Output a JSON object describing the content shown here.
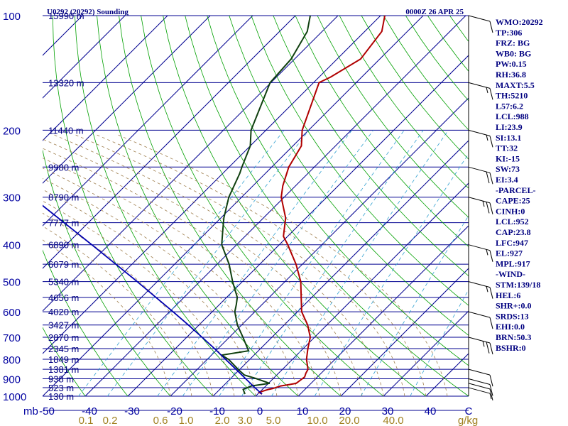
{
  "header": {
    "station": "U0292 (20292) Sounding",
    "time": "0000Z 26 APR 25"
  },
  "chart_data": {
    "type": "line",
    "title": "U0292 (20292) Sounding",
    "subtitle": "0000Z 26 APR 25",
    "y_axis": {
      "label": "mb",
      "scale": "log",
      "range": [
        1000,
        100
      ],
      "ticks": [
        "100",
        "200",
        "300",
        "400",
        "500",
        "600",
        "700",
        "800",
        "900",
        "1000"
      ]
    },
    "x_axis": {
      "label": "C",
      "range": [
        -50,
        50
      ],
      "skew": true,
      "ticks": [
        "-50",
        "-40",
        "-30",
        "-20",
        "-10",
        "0",
        "10",
        "20",
        "30",
        "40"
      ]
    },
    "mixing_ratio_axis": {
      "label": "g/kg",
      "ticks": [
        "0.1",
        "0.2",
        "0.6",
        "1.0",
        "2.0",
        "3.0",
        "5.0",
        "10.0",
        "20.0",
        "40.0"
      ]
    },
    "height_labels": [
      {
        "p": 100,
        "text": "15990 m"
      },
      {
        "p": 150,
        "text": "13320 m"
      },
      {
        "p": 200,
        "text": "11440 m"
      },
      {
        "p": 250,
        "text": "9980 m"
      },
      {
        "p": 300,
        "text": "8790 m"
      },
      {
        "p": 350,
        "text": "7777 m"
      },
      {
        "p": 400,
        "text": "6890 m"
      },
      {
        "p": 450,
        "text": "6079 m"
      },
      {
        "p": 500,
        "text": "5340 m"
      },
      {
        "p": 550,
        "text": "4656 m"
      },
      {
        "p": 600,
        "text": "4020 m"
      },
      {
        "p": 650,
        "text": "3427 m"
      },
      {
        "p": 700,
        "text": "2870 m"
      },
      {
        "p": 750,
        "text": "2345 m"
      },
      {
        "p": 800,
        "text": "1849 m"
      },
      {
        "p": 850,
        "text": "1381 m"
      },
      {
        "p": 900,
        "text": "938 m"
      },
      {
        "p": 950,
        "text": "523 m"
      },
      {
        "p": 1000,
        "text": "130 m"
      }
    ],
    "series": [
      {
        "color": "#b00000",
        "points": [
          {
            "p": 987,
            "t": 1.0
          },
          {
            "p": 978,
            "t": 0.0
          },
          {
            "p": 970,
            "t": 0.5
          },
          {
            "p": 960,
            "t": 1.4
          },
          {
            "p": 955,
            "t": 2.2
          },
          {
            "p": 940,
            "t": 3.5
          },
          {
            "p": 932,
            "t": 5.2
          },
          {
            "p": 925,
            "t": 6.5
          },
          {
            "p": 890,
            "t": 7.0
          },
          {
            "p": 870,
            "t": 6.4
          },
          {
            "p": 850,
            "t": 6.0
          },
          {
            "p": 800,
            "t": 3.3
          },
          {
            "p": 750,
            "t": 1.1
          },
          {
            "p": 700,
            "t": -1.0
          },
          {
            "p": 650,
            "t": -4.5
          },
          {
            "p": 600,
            "t": -9.0
          },
          {
            "p": 550,
            "t": -12.5
          },
          {
            "p": 500,
            "t": -16.3
          },
          {
            "p": 450,
            "t": -21.5
          },
          {
            "p": 400,
            "t": -28.0
          },
          {
            "p": 380,
            "t": -31.0
          },
          {
            "p": 340,
            "t": -34.8
          },
          {
            "p": 300,
            "t": -40.7
          },
          {
            "p": 280,
            "t": -43.0
          },
          {
            "p": 250,
            "t": -46.0
          },
          {
            "p": 220,
            "t": -48.0
          },
          {
            "p": 200,
            "t": -51.5
          },
          {
            "p": 150,
            "t": -58.7
          },
          {
            "p": 145,
            "t": -57.3
          },
          {
            "p": 130,
            "t": -54.5
          },
          {
            "p": 110,
            "t": -56.0
          },
          {
            "p": 100,
            "t": -59.0
          }
        ]
      },
      {
        "color": "#104010",
        "points": [
          {
            "p": 987,
            "t": -3.0
          },
          {
            "p": 960,
            "t": -4.5
          },
          {
            "p": 940,
            "t": -3.4
          },
          {
            "p": 925,
            "t": 0.3
          },
          {
            "p": 900,
            "t": -3.8
          },
          {
            "p": 880,
            "t": -7.6
          },
          {
            "p": 850,
            "t": -10.4
          },
          {
            "p": 800,
            "t": -15.0
          },
          {
            "p": 780,
            "t": -17.6
          },
          {
            "p": 760,
            "t": -12.3
          },
          {
            "p": 700,
            "t": -16.8
          },
          {
            "p": 650,
            "t": -21.0
          },
          {
            "p": 600,
            "t": -24.7
          },
          {
            "p": 575,
            "t": -26.0
          },
          {
            "p": 550,
            "t": -27.5
          },
          {
            "p": 500,
            "t": -32.3
          },
          {
            "p": 450,
            "t": -37.2
          },
          {
            "p": 400,
            "t": -43.5
          },
          {
            "p": 370,
            "t": -46.3
          },
          {
            "p": 340,
            "t": -49.3
          },
          {
            "p": 300,
            "t": -53.0
          },
          {
            "p": 260,
            "t": -56.0
          },
          {
            "p": 250,
            "t": -57.0
          },
          {
            "p": 220,
            "t": -60.0
          },
          {
            "p": 200,
            "t": -63.5
          },
          {
            "p": 150,
            "t": -70.2
          },
          {
            "p": 130,
            "t": -70.8
          },
          {
            "p": 110,
            "t": -73.5
          },
          {
            "p": 100,
            "t": -76.5
          }
        ]
      },
      {
        "color": "#0000b0",
        "points": [
          {
            "p": 987,
            "t": 1.0
          },
          {
            "p": 952,
            "t": -2.0
          },
          {
            "p": 900,
            "t": -6.4
          },
          {
            "p": 850,
            "t": -10.9
          },
          {
            "p": 800,
            "t": -15.7
          },
          {
            "p": 750,
            "t": -20.8
          },
          {
            "p": 700,
            "t": -26.4
          },
          {
            "p": 650,
            "t": -32.5
          },
          {
            "p": 600,
            "t": -39.2
          },
          {
            "p": 550,
            "t": -46.6
          },
          {
            "p": 500,
            "t": -54.7
          },
          {
            "p": 450,
            "t": -63.8
          },
          {
            "p": 400,
            "t": -74.0
          },
          {
            "p": 350,
            "t": -85.7
          },
          {
            "p": 300,
            "t": -99.2
          },
          {
            "p": 250,
            "t": -115.0
          },
          {
            "p": 200,
            "t": -134.0
          },
          {
            "p": 150,
            "t": -157.0
          },
          {
            "p": 120,
            "t": -173.0
          }
        ]
      }
    ],
    "wind_barbs": [
      {
        "p": 100,
        "speed": 10
      },
      {
        "p": 150,
        "speed": 15
      },
      {
        "p": 200,
        "speed": 15
      },
      {
        "p": 250,
        "speed": 20
      },
      {
        "p": 300,
        "speed": 25
      },
      {
        "p": 400,
        "speed": 15
      },
      {
        "p": 500,
        "speed": 15
      },
      {
        "p": 600,
        "speed": 10
      },
      {
        "p": 700,
        "speed": 25
      },
      {
        "p": 850,
        "speed": 10
      },
      {
        "p": 900,
        "speed": 10
      },
      {
        "p": 925,
        "speed": 10
      },
      {
        "p": 950,
        "speed": 5
      }
    ]
  },
  "indices": [
    "WMO:20292",
    "TP:306",
    "FRZ: BG",
    "WB0: BG",
    "PW:0.15",
    "RH:36.8",
    "MAXT:5.5",
    "TH:5210",
    "L57:6.2",
    "LCL:988",
    "LI:23.9",
    "SI:13.1",
    "TT:32",
    "KI:-15",
    "SW:73",
    "EI:3.4",
    "-PARCEL-",
    "CAPE:25",
    "CINH:0",
    "LCL:952",
    "CAP:23.8",
    "LFC:947",
    "EL:927",
    "MPL:917",
    "-WIND-",
    "STM:139/18",
    "HEL:6",
    "SHR+:0.0",
    "SRDS:13",
    "EHI:0.0",
    "BRN:50.3",
    "BSHR:0"
  ],
  "colors": {
    "isobar": "#000090",
    "isotherm": "#000090",
    "dry_adiabat": "#00a000",
    "moist_adiabat": "#a08050",
    "mixing_ratio": "#30a0d0",
    "background": "#ffffff"
  }
}
